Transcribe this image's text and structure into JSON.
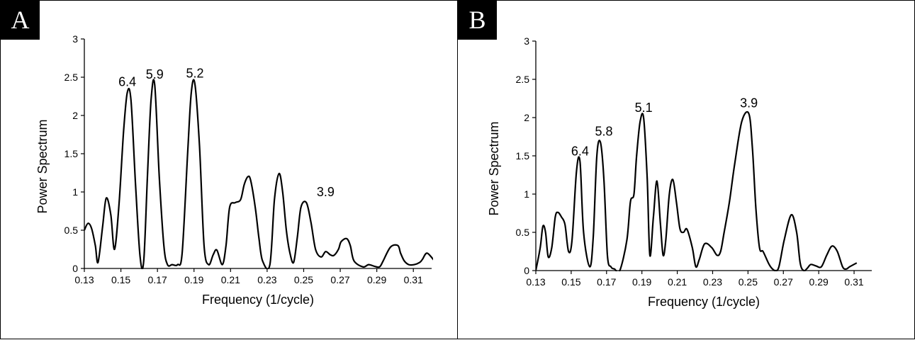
{
  "panels": [
    {
      "tag": "A"
    },
    {
      "tag": "B"
    }
  ],
  "chart_data": [
    {
      "type": "line",
      "panel": "A",
      "xlabel": "Frequency (1/cycle)",
      "ylabel": "Power Spectrum",
      "xlim": [
        0.13,
        0.32
      ],
      "ylim": [
        0,
        3
      ],
      "xticks": [
        "0.13",
        "0.15",
        "0.17",
        "0.19",
        "0.21",
        "0.23",
        "0.25",
        "0.27",
        "0.29",
        "0.31"
      ],
      "yticks": [
        "0",
        "0.5",
        "1",
        "1.5",
        "2",
        "2.5",
        "3"
      ],
      "line_color": "#000000",
      "series": [
        {
          "x": [
            0.13,
            0.132,
            0.134,
            0.136,
            0.1375,
            0.14,
            0.142,
            0.1445,
            0.1465,
            0.149,
            0.1515,
            0.1535,
            0.1555,
            0.158,
            0.1605,
            0.1625,
            0.1645,
            0.1665,
            0.1685,
            0.171,
            0.1735,
            0.1755,
            0.178,
            0.181,
            0.1835,
            0.1865,
            0.1885,
            0.1905,
            0.193,
            0.1955,
            0.198,
            0.2005,
            0.2025,
            0.2055,
            0.2075,
            0.2095,
            0.2125,
            0.2155,
            0.2175,
            0.2195,
            0.221,
            0.2235,
            0.2255,
            0.2275,
            0.2315,
            0.234,
            0.2365,
            0.2385,
            0.2405,
            0.2425,
            0.2445,
            0.2465,
            0.2485,
            0.2515,
            0.254,
            0.2565,
            0.2595,
            0.262,
            0.2645,
            0.2665,
            0.269,
            0.2705,
            0.2735,
            0.2755,
            0.2775,
            0.2825,
            0.2855,
            0.2885,
            0.2915,
            0.2935,
            0.2975,
            0.3015,
            0.303,
            0.305,
            0.3075,
            0.3105,
            0.3135,
            0.315,
            0.3175,
            0.3215
          ],
          "y": [
            0.5,
            0.59,
            0.52,
            0.3,
            0.08,
            0.55,
            0.92,
            0.7,
            0.25,
            0.85,
            1.8,
            2.3,
            2.2,
            1.1,
            0.15,
            0.1,
            1.2,
            2.2,
            2.4,
            1.2,
            0.3,
            0.05,
            0.05,
            0.05,
            0.2,
            1.5,
            2.3,
            2.41,
            1.6,
            0.3,
            0.05,
            0.18,
            0.24,
            0.05,
            0.3,
            0.8,
            0.86,
            0.9,
            1.1,
            1.2,
            1.15,
            0.8,
            0.4,
            0.1,
            0.05,
            0.9,
            1.24,
            1.0,
            0.5,
            0.2,
            0.08,
            0.4,
            0.8,
            0.86,
            0.6,
            0.25,
            0.15,
            0.22,
            0.18,
            0.17,
            0.25,
            0.35,
            0.39,
            0.3,
            0.1,
            0.02,
            0.05,
            0.03,
            0.02,
            0.1,
            0.28,
            0.3,
            0.2,
            0.1,
            0.05,
            0.05,
            0.08,
            0.12,
            0.2,
            0.1
          ]
        }
      ],
      "annotations": [
        {
          "text": "6.4",
          "x": 0.1535,
          "y": 2.3
        },
        {
          "text": "5.9",
          "x": 0.1685,
          "y": 2.4
        },
        {
          "text": "5.2",
          "x": 0.1905,
          "y": 2.41
        },
        {
          "text": "3.9",
          "x": 0.262,
          "y": 0.86
        }
      ]
    },
    {
      "type": "line",
      "panel": "B",
      "xlabel": "Frequency (1/cycle)",
      "ylabel": "Power Spectrum",
      "xlim": [
        0.13,
        0.32
      ],
      "ylim": [
        0,
        3
      ],
      "xticks": [
        "0.13",
        "0.15",
        "0.17",
        "0.19",
        "0.21",
        "0.23",
        "0.25",
        "0.27",
        "0.29",
        "0.31"
      ],
      "yticks": [
        "0",
        "0.5",
        "1",
        "1.5",
        "2",
        "2.5",
        "3"
      ],
      "line_color": "#000000",
      "series": [
        {
          "x": [
            0.13,
            0.1325,
            0.134,
            0.1355,
            0.137,
            0.139,
            0.141,
            0.1425,
            0.1445,
            0.1465,
            0.1485,
            0.1505,
            0.153,
            0.155,
            0.157,
            0.1605,
            0.1625,
            0.1645,
            0.1665,
            0.1685,
            0.1705,
            0.1725,
            0.1745,
            0.1775,
            0.1815,
            0.1835,
            0.1855,
            0.187,
            0.189,
            0.191,
            0.193,
            0.1945,
            0.1965,
            0.1985,
            0.2005,
            0.202,
            0.2035,
            0.2055,
            0.2075,
            0.2095,
            0.2115,
            0.2135,
            0.2155,
            0.2185,
            0.2205,
            0.2225,
            0.2255,
            0.2295,
            0.2325,
            0.2345,
            0.2365,
            0.2395,
            0.2425,
            0.2465,
            0.2505,
            0.2525,
            0.2545,
            0.2565,
            0.2585,
            0.2615,
            0.2635,
            0.2655,
            0.2675,
            0.2705,
            0.2745,
            0.2775,
            0.2795,
            0.2815,
            0.2835,
            0.2855,
            0.2885,
            0.2915,
            0.2945,
            0.2975,
            0.3005,
            0.3035,
            0.3055,
            0.3075,
            0.3115
          ],
          "y": [
            0.0,
            0.3,
            0.58,
            0.5,
            0.18,
            0.3,
            0.7,
            0.76,
            0.7,
            0.6,
            0.25,
            0.4,
            1.3,
            1.42,
            0.5,
            0.05,
            0.45,
            1.5,
            1.68,
            1.2,
            0.2,
            0.05,
            0.02,
            0.0,
            0.4,
            0.9,
            1.0,
            1.5,
            1.95,
            1.99,
            1.2,
            0.2,
            0.7,
            1.17,
            0.6,
            0.2,
            0.4,
            1.0,
            1.19,
            0.9,
            0.55,
            0.5,
            0.54,
            0.3,
            0.05,
            0.15,
            0.35,
            0.3,
            0.2,
            0.25,
            0.5,
            0.9,
            1.4,
            1.95,
            2.05,
            1.6,
            0.8,
            0.3,
            0.25,
            0.1,
            0.03,
            0.0,
            0.05,
            0.4,
            0.73,
            0.5,
            0.1,
            0.0,
            0.03,
            0.08,
            0.06,
            0.05,
            0.2,
            0.32,
            0.25,
            0.05,
            0.02,
            0.05,
            0.1
          ]
        }
      ],
      "annotations": [
        {
          "text": "6.4",
          "x": 0.155,
          "y": 1.42
        },
        {
          "text": "5.8",
          "x": 0.1685,
          "y": 1.68
        },
        {
          "text": "5.1",
          "x": 0.191,
          "y": 1.99
        },
        {
          "text": "3.9",
          "x": 0.2505,
          "y": 2.05
        }
      ]
    }
  ]
}
